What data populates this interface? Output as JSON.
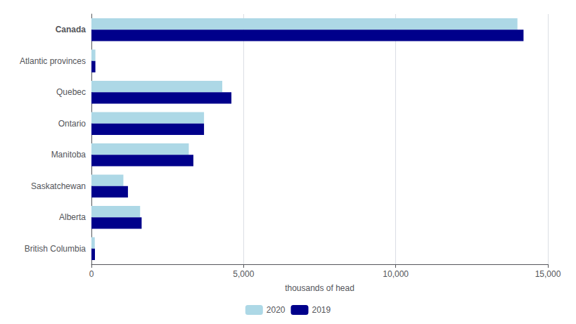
{
  "chart_data": {
    "type": "bar",
    "orientation": "horizontal",
    "categories": [
      "Canada",
      "Atlantic provinces",
      "Quebec",
      "Ontario",
      "Manitoba",
      "Saskatchewan",
      "Alberta",
      "British Columbia"
    ],
    "series": [
      {
        "name": "2020",
        "color": "#add8e6",
        "values": [
          14000,
          130,
          4300,
          3700,
          3200,
          1050,
          1600,
          110
        ]
      },
      {
        "name": "2019",
        "color": "#00008b",
        "values": [
          14200,
          130,
          4600,
          3700,
          3350,
          1200,
          1650,
          115
        ]
      }
    ],
    "xlabel": "thousands of head",
    "xlim": [
      0,
      15000
    ],
    "xticks": [
      0,
      {
        "value": 5000,
        "label": "5,000"
      },
      {
        "value": 10000,
        "label": "10,000"
      },
      {
        "value": 15000,
        "label": "15,000"
      }
    ],
    "grid": true,
    "legend": "bottom"
  }
}
